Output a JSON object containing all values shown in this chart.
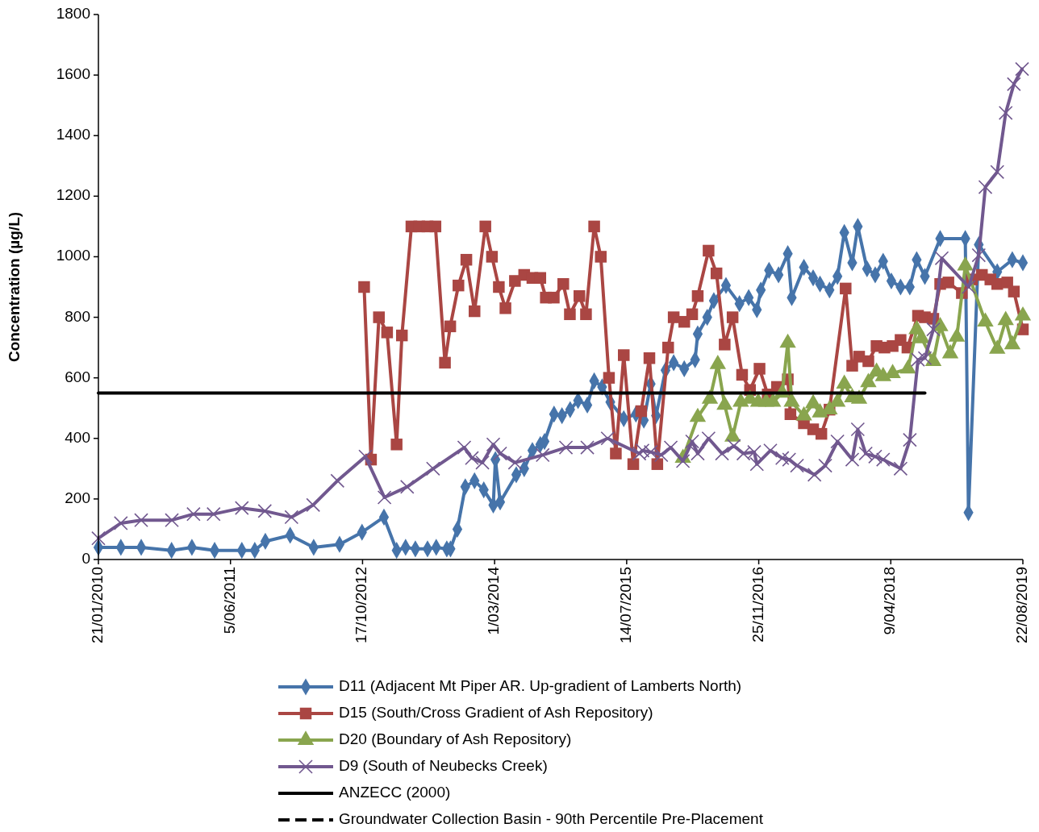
{
  "chart_data": {
    "type": "line",
    "ylabel": "Concentration (µg/L)",
    "legend": "bottom",
    "xlim": [
      "2010-01-21",
      "2019-08-22"
    ],
    "xticks": [
      {
        "value": "2010-01-21",
        "label": "21/01/2010"
      },
      {
        "value": "2011-06-05",
        "label": "5/06/2011"
      },
      {
        "value": "2012-10-17",
        "label": "17/10/2012"
      },
      {
        "value": "2014-03-01",
        "label": "1/03/2014"
      },
      {
        "value": "2015-07-14",
        "label": "14/07/2015"
      },
      {
        "value": "2016-11-25",
        "label": "25/11/2016"
      },
      {
        "value": "2018-04-09",
        "label": "9/04/2018"
      },
      {
        "value": "2019-08-22",
        "label": "22/08/2019"
      }
    ],
    "ylim": [
      0,
      1800
    ],
    "yticks": [
      0,
      200,
      400,
      600,
      800,
      1000,
      1200,
      1400,
      1600,
      1800
    ],
    "series": [
      {
        "name": "D11 (Adjacent Mt Piper AR. Up-gradient of Lamberts North)",
        "color": "#4674aa",
        "marker": "diamond",
        "x": [
          "2010-01-21",
          "2010-04-16",
          "2010-07-02",
          "2010-10-25",
          "2011-01-10",
          "2011-04-06",
          "2011-07-18",
          "2011-09-05",
          "2011-10-15",
          "2012-01-17",
          "2012-04-15",
          "2012-07-22",
          "2012-10-15",
          "2013-01-06",
          "2013-02-23",
          "2013-03-29",
          "2013-05-05",
          "2013-06-20",
          "2013-07-23",
          "2013-09-01",
          "2013-09-15",
          "2013-10-11",
          "2013-11-10",
          "2013-12-15",
          "2014-01-19",
          "2014-02-24",
          "2014-03-04",
          "2014-03-22",
          "2014-05-22",
          "2014-06-21",
          "2014-07-22",
          "2014-08-21",
          "2014-09-06",
          "2014-10-12",
          "2014-11-11",
          "2014-12-12",
          "2015-01-11",
          "2015-02-15",
          "2015-03-13",
          "2015-04-12",
          "2015-05-13",
          "2015-07-03",
          "2015-08-18",
          "2015-09-17",
          "2015-10-13",
          "2015-11-02",
          "2015-12-08",
          "2016-01-08",
          "2016-02-17",
          "2016-03-29",
          "2016-04-08",
          "2016-05-14",
          "2016-06-08",
          "2016-07-24",
          "2016-09-13",
          "2016-10-18",
          "2016-11-18",
          "2016-12-03",
          "2017-01-03",
          "2017-02-08",
          "2017-03-15",
          "2017-03-30",
          "2017-05-15",
          "2017-06-19",
          "2017-07-15",
          "2017-08-20",
          "2017-09-19",
          "2017-10-15",
          "2017-11-14",
          "2017-12-05",
          "2018-01-09",
          "2018-02-09",
          "2018-03-11",
          "2018-04-11",
          "2018-05-16",
          "2018-06-20",
          "2018-07-16",
          "2018-08-16",
          "2018-10-13",
          "2019-01-16",
          "2019-01-28",
          "2019-03-08",
          "2019-05-17",
          "2019-07-13",
          "2019-08-22"
        ],
        "values": [
          40,
          40,
          40,
          30,
          40,
          30,
          30,
          30,
          60,
          80,
          40,
          50,
          90,
          140,
          30,
          40,
          35,
          35,
          40,
          35,
          35,
          100,
          240,
          260,
          230,
          180,
          330,
          190,
          280,
          300,
          360,
          380,
          390,
          480,
          475,
          495,
          525,
          510,
          590,
          570,
          520,
          465,
          480,
          460,
          580,
          475,
          625,
          650,
          630,
          660,
          745,
          800,
          855,
          905,
          845,
          865,
          825,
          890,
          955,
          940,
          1010,
          865,
          965,
          930,
          910,
          890,
          935,
          1080,
          980,
          1100,
          960,
          940,
          985,
          920,
          900,
          900,
          990,
          935,
          1060,
          1060,
          155,
          1040,
          950,
          990,
          980
        ]
      },
      {
        "name": "D15 (South/Cross Gradient of Ash Repository)",
        "color": "#aa4643",
        "marker": "square",
        "x": [
          "2012-10-23",
          "2012-11-18",
          "2012-12-18",
          "2013-01-18",
          "2013-02-23",
          "2013-03-15",
          "2013-04-20",
          "2013-05-20",
          "2013-06-20",
          "2013-07-20",
          "2013-08-25",
          "2013-09-14",
          "2013-10-15",
          "2013-11-14",
          "2013-12-15",
          "2014-01-25",
          "2014-02-19",
          "2014-03-17",
          "2014-04-11",
          "2014-05-17",
          "2014-06-21",
          "2014-07-22",
          "2014-08-21",
          "2014-09-11",
          "2014-10-11",
          "2014-11-16",
          "2014-12-11",
          "2015-01-16",
          "2015-02-10",
          "2015-03-13",
          "2015-04-07",
          "2015-05-08",
          "2015-06-03",
          "2015-07-03",
          "2015-08-08",
          "2015-09-07",
          "2015-10-08",
          "2015-11-07",
          "2015-12-18",
          "2016-01-08",
          "2016-02-17",
          "2016-03-18",
          "2016-04-08",
          "2016-05-19",
          "2016-06-18",
          "2016-07-19",
          "2016-08-18",
          "2016-09-23",
          "2016-10-23",
          "2016-11-28",
          "2016-12-29",
          "2017-02-02",
          "2017-03-15",
          "2017-03-25",
          "2017-05-15",
          "2017-06-19",
          "2017-07-20",
          "2017-08-20",
          "2017-10-20",
          "2017-11-14",
          "2017-12-10",
          "2018-01-14",
          "2018-02-14",
          "2018-03-16",
          "2018-04-16",
          "2018-05-16",
          "2018-06-11",
          "2018-07-21",
          "2018-08-16",
          "2018-09-17",
          "2018-10-13",
          "2018-11-13",
          "2019-01-03",
          "2019-02-10",
          "2019-03-20",
          "2019-04-21",
          "2019-05-17",
          "2019-06-24",
          "2019-07-19",
          "2019-08-22"
        ],
        "values": [
          900,
          330,
          800,
          750,
          380,
          740,
          1100,
          1100,
          1100,
          1100,
          650,
          770,
          905,
          990,
          820,
          1100,
          1000,
          900,
          830,
          920,
          940,
          930,
          930,
          865,
          865,
          910,
          810,
          870,
          810,
          1100,
          1000,
          600,
          350,
          675,
          315,
          490,
          665,
          315,
          700,
          800,
          785,
          810,
          870,
          1020,
          945,
          710,
          800,
          610,
          560,
          630,
          545,
          570,
          595,
          480,
          450,
          430,
          415,
          495,
          895,
          640,
          670,
          655,
          705,
          700,
          705,
          725,
          700,
          805,
          800,
          795,
          910,
          915,
          880,
          925,
          940,
          925,
          910,
          915,
          885,
          760
        ]
      },
      {
        "name": "D20 (Boundary of Ash Repository)",
        "color": "#89a54e",
        "marker": "triangle",
        "x": [
          "2016-02-12",
          "2016-04-08",
          "2016-05-24",
          "2016-06-23",
          "2016-07-19",
          "2016-08-18",
          "2016-09-18",
          "2016-10-23",
          "2016-11-23",
          "2016-12-23",
          "2017-01-18",
          "2017-02-22",
          "2017-03-15",
          "2017-03-30",
          "2017-05-15",
          "2017-06-19",
          "2017-07-15",
          "2017-08-20",
          "2017-09-19",
          "2017-10-15",
          "2017-11-14",
          "2017-12-10",
          "2018-01-14",
          "2018-02-14",
          "2018-03-11",
          "2018-04-16",
          "2018-06-13",
          "2018-07-16",
          "2018-08-04",
          "2018-09-17",
          "2018-10-13",
          "2018-11-20",
          "2018-12-15",
          "2019-01-16",
          "2019-04-02",
          "2019-05-17",
          "2019-06-18",
          "2019-07-13",
          "2019-08-22"
        ],
        "values": [
          335,
          470,
          530,
          645,
          510,
          405,
          520,
          530,
          520,
          520,
          520,
          550,
          715,
          520,
          475,
          515,
          485,
          495,
          520,
          580,
          535,
          530,
          585,
          620,
          605,
          615,
          630,
          760,
          730,
          655,
          770,
          680,
          735,
          970,
          785,
          695,
          790,
          710,
          805
        ]
      },
      {
        "name": "D9 (South of Neubecks Creek)",
        "color": "#71588f",
        "marker": "cross",
        "x": [
          "2010-01-21",
          "2010-04-16",
          "2010-07-02",
          "2010-10-26",
          "2011-01-16",
          "2011-04-02",
          "2011-07-18",
          "2011-10-13",
          "2012-01-22",
          "2012-04-13",
          "2012-07-14",
          "2012-10-28",
          "2013-01-08",
          "2013-04-04",
          "2013-07-11",
          "2013-11-06",
          "2013-12-05",
          "2014-01-14",
          "2014-02-24",
          "2014-03-22",
          "2014-05-17",
          "2014-08-30",
          "2014-11-26",
          "2015-02-15",
          "2015-05-03",
          "2015-08-31",
          "2015-09-12",
          "2015-10-13",
          "2015-11-22",
          "2015-12-28",
          "2016-02-12",
          "2016-03-18",
          "2016-04-08",
          "2016-05-19",
          "2016-07-09",
          "2016-08-23",
          "2016-09-28",
          "2016-11-08",
          "2016-11-18",
          "2017-01-08",
          "2017-02-22",
          "2017-03-20",
          "2017-04-19",
          "2017-06-24",
          "2017-08-04",
          "2017-09-19",
          "2017-11-14",
          "2017-12-05",
          "2018-01-04",
          "2018-02-09",
          "2018-03-11",
          "2018-05-16",
          "2018-06-20",
          "2018-07-21",
          "2018-08-16",
          "2018-09-17",
          "2018-10-19",
          "2019-01-29",
          "2019-03-08",
          "2019-04-02",
          "2019-05-17",
          "2019-06-18",
          "2019-07-19",
          "2019-08-19"
        ],
        "values": [
          70,
          120,
          130,
          130,
          150,
          150,
          170,
          160,
          140,
          180,
          260,
          340,
          205,
          240,
          300,
          370,
          335,
          320,
          380,
          350,
          320,
          345,
          370,
          370,
          400,
          350,
          360,
          355,
          345,
          370,
          325,
          390,
          350,
          400,
          350,
          375,
          350,
          355,
          315,
          360,
          335,
          330,
          310,
          280,
          310,
          390,
          330,
          430,
          350,
          340,
          330,
          300,
          395,
          660,
          665,
          760,
          995,
          900,
          1005,
          1230,
          1280,
          1475,
          1570,
          1620
        ]
      },
      {
        "name": "ANZECC (2000)",
        "color": "#000000",
        "marker": "none",
        "x": [
          "2010-01-21",
          "2018-08-16"
        ],
        "values": [
          550,
          550
        ]
      },
      {
        "name": "Groundwater Collection Basin - 90th Percentile Pre-Placement",
        "color": "#000000",
        "marker": "none",
        "line_style": "dashed"
      }
    ]
  }
}
